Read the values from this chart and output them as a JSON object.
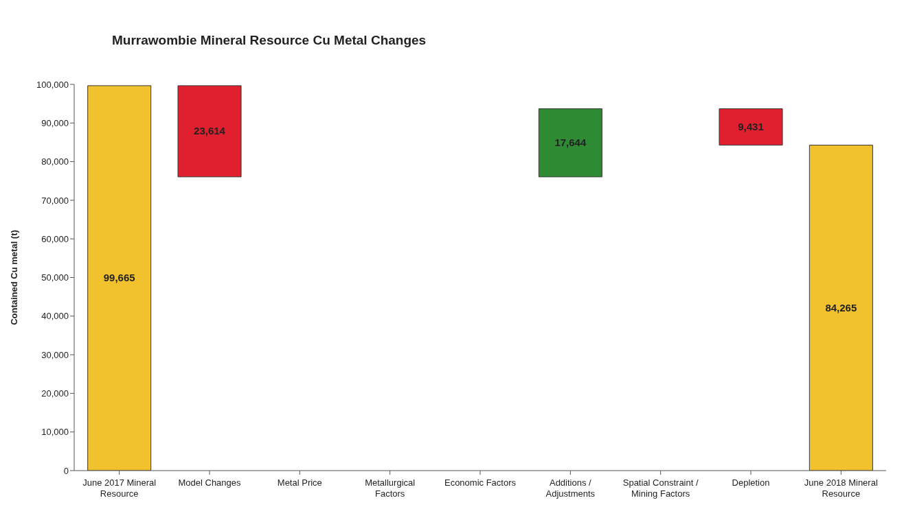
{
  "chart_data": {
    "type": "bar",
    "title": "Murrawombie Mineral Resource Cu Metal Changes",
    "ylabel": "Contained Cu metal (t)",
    "categories": [
      "June 2017 Mineral Resource",
      "Model Changes",
      "Metal Price",
      "Metallurgical Factors",
      "Economic Factors",
      "Additions / Adjustments",
      "Spatial Constraint / Mining Factors",
      "Depletion",
      "June 2018 Mineral Resource"
    ],
    "values": [
      99665,
      23614,
      null,
      null,
      null,
      17644,
      null,
      9431,
      84265
    ],
    "base": [
      0,
      76051,
      null,
      null,
      null,
      76051,
      null,
      84264,
      0
    ],
    "colors": [
      "#f2c12e",
      "#e0202e",
      null,
      null,
      null,
      "#2e8b34",
      null,
      "#e0202e",
      "#f2c12e"
    ],
    "value_labels": [
      "99,665",
      "23,614",
      null,
      null,
      null,
      "17,644",
      null,
      "9,431",
      "84,265"
    ],
    "grid": false,
    "legend": false,
    "ylim": [
      0,
      100000
    ],
    "yticks": [
      {
        "value": 0,
        "label": "0"
      },
      {
        "value": 10000,
        "label": "10,000"
      },
      {
        "value": 20000,
        "label": "20,000"
      },
      {
        "value": 30000,
        "label": "30,000"
      },
      {
        "value": 40000,
        "label": "40,000"
      },
      {
        "value": 50000,
        "label": "50,000"
      },
      {
        "value": 60000,
        "label": "60,000"
      },
      {
        "value": 70000,
        "label": "70,000"
      },
      {
        "value": 80000,
        "label": "80,000"
      },
      {
        "value": 90000,
        "label": "90,000"
      },
      {
        "value": 100000,
        "label": "100,000"
      }
    ]
  }
}
